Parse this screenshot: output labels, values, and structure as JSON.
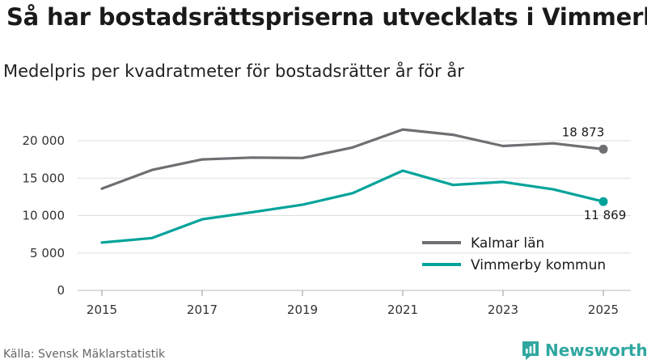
{
  "header": {
    "title": "Så har bostadsrättspriserna utvecklats i Vimmerby",
    "subtitle": "Medelpris per kvadratmeter för bostadsrätter år för år"
  },
  "footer": {
    "source": "Källa: Svensk Mäklarstatistik",
    "brand": "Newsworthy"
  },
  "colors": {
    "kalmar": "#6e6e73",
    "vimmerby": "#00a39a",
    "grid": "#dddddd",
    "brand": "#2fa7a0"
  },
  "chart_data": {
    "type": "line",
    "x": [
      2015,
      2016,
      2017,
      2018,
      2019,
      2020,
      2021,
      2022,
      2023,
      2024,
      2025
    ],
    "x_ticks": [
      "2015",
      "2017",
      "2019",
      "2021",
      "2023",
      "2025"
    ],
    "y_ticks": [
      "0",
      "5 000",
      "10 000",
      "15 000",
      "20 000"
    ],
    "ylim": [
      0,
      22000
    ],
    "legend_position": "bottom-right",
    "series": [
      {
        "name": "Kalmar län",
        "values": [
          13600,
          16100,
          17500,
          17750,
          17700,
          19100,
          21500,
          20800,
          19300,
          19650,
          18873
        ],
        "end_label": "18 873"
      },
      {
        "name": "Vimmerby kommun",
        "values": [
          6400,
          7000,
          9500,
          10450,
          11450,
          13000,
          16000,
          14100,
          14500,
          13500,
          11869
        ],
        "end_label": "11 869"
      }
    ]
  }
}
